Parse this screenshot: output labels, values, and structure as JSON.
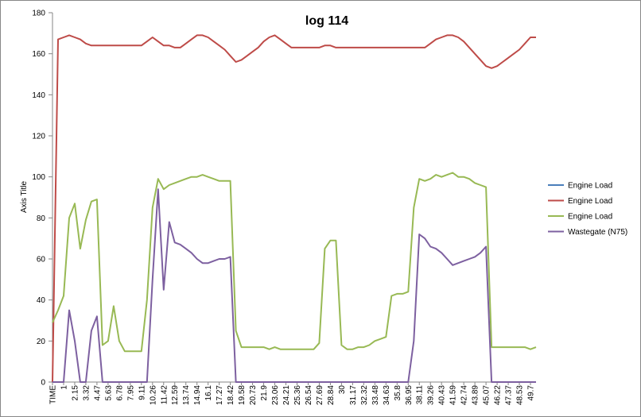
{
  "chart_data": {
    "type": "line",
    "title": "log 114",
    "y_label": "Axis Title",
    "categories": [
      "TIME",
      null,
      "1",
      null,
      "2.15",
      null,
      "3.32",
      null,
      "4.47",
      null,
      "5.63",
      null,
      "6.78",
      null,
      "7.95",
      null,
      "9.11",
      null,
      "10.26",
      null,
      "11.42",
      null,
      "12.59",
      null,
      "13.74",
      null,
      "14.94",
      null,
      "16.1",
      null,
      "17.27",
      null,
      "18.42",
      null,
      "19.58",
      null,
      "20.73",
      null,
      "21.9",
      null,
      "23.06",
      null,
      "24.21",
      null,
      "25.36",
      null,
      "26.54",
      null,
      "27.69",
      null,
      "28.84",
      null,
      "30",
      null,
      "31.17",
      null,
      "32.32",
      null,
      "33.48",
      null,
      "34.63",
      null,
      "35.8",
      null,
      "36.95",
      null,
      "38.11",
      null,
      "39.26",
      null,
      "40.43",
      null,
      "41.59",
      null,
      "42.74",
      null,
      "43.89",
      null,
      "45.07",
      null,
      "46.22",
      null,
      "47.37",
      null,
      "48.53",
      null,
      "49.7",
      null
    ],
    "series": [
      {
        "name": "Engine Load",
        "color": "#4a7ebb",
        "values": [
          null,
          null,
          null,
          null,
          null,
          null,
          null,
          null,
          null,
          null,
          null,
          null,
          null,
          null,
          null,
          null,
          null,
          null,
          null,
          null,
          null,
          null,
          null,
          null,
          null,
          null,
          null,
          null,
          null,
          null,
          null,
          null,
          null,
          null,
          null,
          null,
          null,
          null,
          null,
          null,
          null,
          null,
          null,
          null,
          null,
          null,
          null,
          null,
          null,
          null,
          null,
          null,
          null,
          null,
          null,
          null,
          null,
          null,
          null,
          null,
          null,
          null,
          null,
          null,
          null,
          null,
          null,
          null,
          null,
          null,
          null,
          null,
          null,
          null,
          null,
          null,
          null,
          null,
          null,
          null,
          null,
          null,
          null,
          null,
          null,
          null,
          null,
          null
        ]
      },
      {
        "name": "Engine Load",
        "color": "#be4b48",
        "values": [
          0,
          167,
          168,
          169,
          168,
          167,
          165,
          164,
          164,
          164,
          164,
          164,
          164,
          164,
          164,
          164,
          164,
          166,
          168,
          166,
          164,
          164,
          163,
          163,
          165,
          167,
          169,
          169,
          168,
          166,
          164,
          162,
          159,
          156,
          157,
          159,
          161,
          163,
          166,
          168,
          169,
          167,
          165,
          163,
          163,
          163,
          163,
          163,
          163,
          164,
          164,
          163,
          163,
          163,
          163,
          163,
          163,
          163,
          163,
          163,
          163,
          163,
          163,
          163,
          163,
          163,
          163,
          163,
          165,
          167,
          168,
          169,
          169,
          168,
          166,
          163,
          160,
          157,
          154,
          153,
          154,
          156,
          158,
          160,
          162,
          165,
          168,
          168
        ]
      },
      {
        "name": "Engine Load",
        "color": "#98b954",
        "values": [
          29,
          35,
          42,
          80,
          87,
          65,
          79,
          88,
          89,
          18,
          20,
          37,
          20,
          15,
          15,
          15,
          15,
          40,
          85,
          99,
          94,
          96,
          97,
          98,
          99,
          100,
          100,
          101,
          100,
          99,
          98,
          98,
          98,
          25,
          17,
          17,
          17,
          17,
          17,
          16,
          17,
          16,
          16,
          16,
          16,
          16,
          16,
          16,
          19,
          65,
          69,
          69,
          18,
          16,
          16,
          17,
          17,
          18,
          20,
          21,
          22,
          42,
          43,
          43,
          44,
          85,
          99,
          98,
          99,
          101,
          100,
          101,
          102,
          100,
          100,
          99,
          97,
          96,
          95,
          17,
          17,
          17,
          17,
          17,
          17,
          17,
          16,
          17
        ]
      },
      {
        "name": "Wastegate (N75)",
        "color": "#7d60a0",
        "values": [
          0,
          0,
          0,
          35,
          20,
          0,
          0,
          25,
          32,
          0,
          0,
          0,
          0,
          0,
          0,
          0,
          0,
          0,
          50,
          94,
          45,
          78,
          68,
          67,
          65,
          63,
          60,
          58,
          58,
          59,
          60,
          60,
          61,
          0,
          0,
          0,
          0,
          0,
          0,
          0,
          0,
          0,
          0,
          0,
          0,
          0,
          0,
          0,
          0,
          0,
          0,
          0,
          0,
          0,
          0,
          0,
          0,
          0,
          0,
          0,
          0,
          0,
          0,
          0,
          0,
          20,
          72,
          70,
          66,
          65,
          63,
          60,
          57,
          58,
          59,
          60,
          61,
          63,
          66,
          0,
          0,
          0,
          0,
          0,
          0,
          0,
          0,
          0
        ]
      }
    ],
    "ylim": [
      0,
      180
    ],
    "yticks": [
      0,
      20,
      40,
      60,
      80,
      100,
      120,
      140,
      160,
      180
    ],
    "grid": false,
    "legend": "right"
  }
}
